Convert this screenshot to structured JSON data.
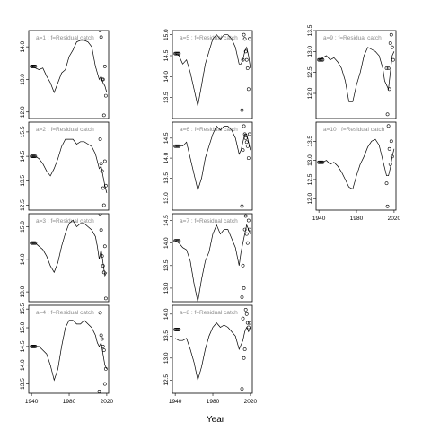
{
  "xlabel": "Year",
  "chart_data": [
    {
      "type": "line",
      "title": "a=1 : f=Residual catch",
      "xlim": [
        1937,
        2022
      ],
      "ylim": [
        11.8,
        14.5
      ],
      "xticks": [
        1940,
        1980,
        2020
      ],
      "yticks": [
        12.0,
        13.0,
        14.0
      ],
      "line": {
        "x": [
          1940,
          1944,
          1948,
          1952,
          1956,
          1960,
          1964,
          1968,
          1972,
          1976,
          1980,
          1984,
          1988,
          1992,
          1996,
          2000,
          2004,
          2008,
          2010,
          2012,
          2014,
          2016,
          2018,
          2020
        ],
        "y": [
          13.4,
          13.35,
          13.3,
          13.35,
          13.1,
          12.9,
          12.6,
          12.9,
          13.2,
          13.3,
          13.7,
          13.9,
          14.15,
          14.2,
          14.2,
          14.15,
          14.0,
          13.4,
          13.2,
          13.0,
          13.1,
          12.9,
          12.8,
          12.6
        ]
      },
      "markers": {
        "x": [
          1940,
          1941,
          1942,
          1943,
          1944
        ],
        "y": [
          13.4,
          13.4,
          13.4,
          13.4,
          13.4
        ]
      },
      "points": {
        "x": [
          2013,
          2014,
          2015,
          2016,
          2017,
          2018,
          2019
        ],
        "y": [
          14.5,
          14.3,
          13.0,
          13.0,
          11.9,
          13.4,
          12.5
        ]
      }
    },
    {
      "type": "line",
      "title": "a=2 : f=Residual catch",
      "xlim": [
        1937,
        2022
      ],
      "ylim": [
        12.3,
        15.9
      ],
      "xticks": [
        1940,
        1980,
        2020
      ],
      "yticks": [
        12.5,
        13.5,
        14.5,
        15.5
      ],
      "line": {
        "x": [
          1940,
          1944,
          1948,
          1952,
          1956,
          1960,
          1964,
          1968,
          1972,
          1976,
          1980,
          1984,
          1988,
          1992,
          1996,
          2000,
          2004,
          2008,
          2010,
          2012,
          2014,
          2016,
          2018,
          2020
        ],
        "y": [
          14.5,
          14.5,
          14.4,
          14.2,
          13.9,
          13.7,
          14.0,
          14.4,
          14.9,
          15.2,
          15.2,
          15.2,
          15.0,
          15.1,
          15.1,
          15.0,
          14.9,
          14.6,
          14.3,
          14.0,
          14.1,
          13.7,
          13.3,
          13.0
        ]
      },
      "markers": {
        "x": [
          1940,
          1941,
          1942,
          1943,
          1944
        ],
        "y": [
          14.5,
          14.5,
          14.5,
          14.5,
          14.5
        ]
      },
      "points": {
        "x": [
          2013,
          2014,
          2015,
          2016,
          2017,
          2018,
          2019
        ],
        "y": [
          15.2,
          14.2,
          13.9,
          13.2,
          12.5,
          14.3,
          13.3
        ]
      }
    },
    {
      "type": "line",
      "title": "a=3 : f=Residual catch",
      "xlim": [
        1937,
        2022
      ],
      "ylim": [
        12.7,
        15.4
      ],
      "xticks": [
        1940,
        1980,
        2020
      ],
      "yticks": [
        13.0,
        14.0,
        15.0
      ],
      "line": {
        "x": [
          1940,
          1944,
          1948,
          1952,
          1956,
          1960,
          1964,
          1968,
          1972,
          1976,
          1980,
          1984,
          1988,
          1992,
          1996,
          2000,
          2004,
          2008,
          2010,
          2012,
          2014,
          2016,
          2018,
          2020
        ],
        "y": [
          14.5,
          14.5,
          14.4,
          14.3,
          14.1,
          13.8,
          13.6,
          13.9,
          14.4,
          14.8,
          15.1,
          15.2,
          15.0,
          15.1,
          15.1,
          15.0,
          14.9,
          14.7,
          14.4,
          14.0,
          14.3,
          13.9,
          13.5,
          13.6
        ]
      },
      "markers": {
        "x": [
          1940,
          1941,
          1942,
          1943,
          1944
        ],
        "y": [
          14.5,
          14.5,
          14.5,
          14.5,
          14.5
        ]
      },
      "points": {
        "x": [
          2013,
          2014,
          2015,
          2016,
          2017,
          2018,
          2019
        ],
        "y": [
          15.4,
          14.9,
          14.1,
          13.8,
          13.6,
          14.4,
          12.8
        ]
      }
    },
    {
      "type": "line",
      "title": "a=4 : f=Residual catch",
      "xlim": [
        1937,
        2022
      ],
      "ylim": [
        13.25,
        15.6
      ],
      "xticks": [
        1940,
        1980,
        2020
      ],
      "yticks": [
        13.5,
        14.0,
        14.5,
        15.0,
        15.5
      ],
      "line": {
        "x": [
          1940,
          1944,
          1948,
          1952,
          1956,
          1960,
          1964,
          1968,
          1972,
          1976,
          1980,
          1984,
          1988,
          1992,
          1996,
          2000,
          2004,
          2008,
          2010,
          2012,
          2014,
          2016,
          2018,
          2020
        ],
        "y": [
          14.5,
          14.5,
          14.5,
          14.4,
          14.3,
          14.0,
          13.6,
          13.9,
          14.5,
          15.0,
          15.2,
          15.2,
          15.1,
          15.1,
          15.2,
          15.1,
          15.0,
          14.8,
          14.6,
          14.5,
          14.6,
          14.3,
          14.0,
          13.9
        ]
      },
      "markers": {
        "x": [
          1940,
          1941,
          1942,
          1943,
          1944
        ],
        "y": [
          14.5,
          14.5,
          14.5,
          14.5,
          14.5
        ]
      },
      "points": {
        "x": [
          2012,
          2013,
          2014,
          2015,
          2016,
          2017,
          2018,
          2019
        ],
        "y": [
          13.3,
          15.4,
          14.8,
          14.7,
          14.5,
          14.4,
          13.5,
          13.9
        ]
      }
    },
    {
      "type": "line",
      "title": "a=5 : f=Residual catch",
      "xlim": [
        1937,
        2022
      ],
      "ylim": [
        13.0,
        15.1
      ],
      "xticks": [
        1940,
        1980,
        2020
      ],
      "yticks": [
        13.5,
        14.0,
        14.5,
        15.0
      ],
      "line": {
        "x": [
          1940,
          1944,
          1948,
          1952,
          1956,
          1960,
          1964,
          1968,
          1972,
          1976,
          1980,
          1984,
          1988,
          1992,
          1996,
          2000,
          2004,
          2008,
          2010,
          2012,
          2014,
          2016,
          2018,
          2020
        ],
        "y": [
          14.55,
          14.5,
          14.3,
          14.4,
          14.1,
          13.7,
          13.3,
          13.8,
          14.3,
          14.6,
          14.9,
          15.0,
          14.9,
          15.0,
          15.0,
          14.9,
          14.7,
          14.3,
          14.3,
          14.4,
          14.6,
          14.7,
          14.5,
          14.2
        ]
      },
      "markers": {
        "x": [
          1940,
          1941,
          1942,
          1943,
          1944
        ],
        "y": [
          14.55,
          14.55,
          14.55,
          14.55,
          14.55
        ]
      },
      "points": {
        "x": [
          2011,
          2012,
          2013,
          2014,
          2015,
          2016,
          2017,
          2018,
          2019
        ],
        "y": [
          13.2,
          14.4,
          15.0,
          14.9,
          14.6,
          14.4,
          14.2,
          13.7,
          14.9
        ]
      }
    },
    {
      "type": "line",
      "title": "a=6 : f=Residual catch",
      "xlim": [
        1937,
        2022
      ],
      "ylim": [
        12.7,
        14.9
      ],
      "xticks": [
        1940,
        1980,
        2020
      ],
      "yticks": [
        13.0,
        13.5,
        14.0,
        14.5
      ],
      "line": {
        "x": [
          1940,
          1944,
          1948,
          1952,
          1956,
          1960,
          1964,
          1968,
          1972,
          1976,
          1980,
          1984,
          1988,
          1992,
          1996,
          2000,
          2004,
          2008,
          2010,
          2012,
          2014,
          2016,
          2018,
          2020
        ],
        "y": [
          14.3,
          14.3,
          14.3,
          14.4,
          14.0,
          13.6,
          13.2,
          13.5,
          14.0,
          14.3,
          14.6,
          14.8,
          14.7,
          14.8,
          14.8,
          14.7,
          14.5,
          14.1,
          14.2,
          14.4,
          14.6,
          14.6,
          14.4,
          14.2
        ]
      },
      "markers": {
        "x": [
          1940,
          1941,
          1942,
          1943,
          1944
        ],
        "y": [
          14.3,
          14.3,
          14.3,
          14.3,
          14.3
        ]
      },
      "points": {
        "x": [
          2011,
          2012,
          2013,
          2014,
          2015,
          2016,
          2017,
          2018,
          2019
        ],
        "y": [
          12.8,
          14.2,
          14.8,
          14.6,
          14.5,
          14.4,
          14.3,
          14.0,
          14.6
        ]
      }
    },
    {
      "type": "line",
      "title": "a=7 : f=Residual catch",
      "xlim": [
        1937,
        2022
      ],
      "ylim": [
        12.7,
        14.65
      ],
      "xticks": [
        1940,
        1980,
        2020
      ],
      "yticks": [
        13.0,
        13.5,
        14.0,
        14.5
      ],
      "line": {
        "x": [
          1940,
          1944,
          1948,
          1952,
          1956,
          1960,
          1964,
          1968,
          1972,
          1976,
          1980,
          1984,
          1988,
          1992,
          1996,
          2000,
          2004,
          2008,
          2010,
          2012,
          2014,
          2016,
          2018,
          2020
        ],
        "y": [
          14.05,
          14.0,
          13.9,
          13.85,
          13.6,
          13.1,
          12.7,
          13.2,
          13.6,
          13.8,
          14.2,
          14.4,
          14.2,
          14.3,
          14.3,
          14.1,
          13.9,
          13.5,
          13.8,
          14.0,
          14.2,
          14.4,
          14.3,
          14.2
        ]
      },
      "markers": {
        "x": [
          1940,
          1941,
          1942,
          1943,
          1944
        ],
        "y": [
          14.05,
          14.05,
          14.05,
          14.05,
          14.05
        ]
      },
      "points": {
        "x": [
          2011,
          2012,
          2013,
          2014,
          2015,
          2016,
          2017,
          2018,
          2019
        ],
        "y": [
          12.8,
          13.5,
          13.0,
          14.3,
          14.6,
          14.2,
          14.0,
          14.5,
          14.3
        ]
      }
    },
    {
      "type": "line",
      "title": "a=8 : f=Residual catch",
      "xlim": [
        1937,
        2022
      ],
      "ylim": [
        12.2,
        14.2
      ],
      "xticks": [
        1940,
        1980,
        2020
      ],
      "yticks": [
        12.5,
        13.0,
        13.5,
        14.0
      ],
      "line": {
        "x": [
          1940,
          1944,
          1948,
          1952,
          1956,
          1960,
          1964,
          1968,
          1972,
          1976,
          1980,
          1984,
          1988,
          1992,
          1996,
          2000,
          2004,
          2008,
          2010,
          2012,
          2014,
          2016,
          2018,
          2020
        ],
        "y": [
          13.45,
          13.4,
          13.4,
          13.45,
          13.2,
          12.9,
          12.5,
          12.8,
          13.2,
          13.5,
          13.7,
          13.8,
          13.7,
          13.75,
          13.7,
          13.6,
          13.5,
          13.2,
          13.3,
          13.4,
          13.6,
          13.7,
          13.6,
          13.7
        ]
      },
      "markers": {
        "x": [
          1940,
          1941,
          1942,
          1943,
          1944
        ],
        "y": [
          13.65,
          13.65,
          13.65,
          13.65,
          13.65
        ]
      },
      "points": {
        "x": [
          2011,
          2012,
          2013,
          2014,
          2015,
          2016,
          2017,
          2018,
          2019
        ],
        "y": [
          12.3,
          13.9,
          13.0,
          13.2,
          14.1,
          14.0,
          13.8,
          13.7,
          13.8
        ]
      }
    },
    {
      "type": "line",
      "title": "a=9 : f=Residual catch",
      "xlim": [
        1937,
        2022
      ],
      "ylim": [
        11.4,
        13.5
      ],
      "xticks": [
        1940,
        1980,
        2020
      ],
      "yticks": [
        12.0,
        12.5,
        13.0,
        13.5
      ],
      "line": {
        "x": [
          1940,
          1944,
          1948,
          1952,
          1956,
          1960,
          1964,
          1968,
          1972,
          1976,
          1980,
          1984,
          1988,
          1992,
          1996,
          2000,
          2004,
          2008,
          2010,
          2012,
          2014,
          2016,
          2018,
          2020
        ],
        "y": [
          12.8,
          12.85,
          12.9,
          12.8,
          12.85,
          12.75,
          12.6,
          12.3,
          11.8,
          11.8,
          12.2,
          12.5,
          12.9,
          13.1,
          13.05,
          13.0,
          12.9,
          12.6,
          12.3,
          12.2,
          12.1,
          12.5,
          12.9,
          13.0
        ]
      },
      "markers": {
        "x": [
          1940,
          1941,
          1942,
          1943,
          1944
        ],
        "y": [
          12.8,
          12.8,
          12.8,
          12.8,
          12.8
        ]
      },
      "points": {
        "x": [
          2012,
          2013,
          2014,
          2015,
          2016,
          2017,
          2018,
          2019
        ],
        "y": [
          12.6,
          11.5,
          12.6,
          12.1,
          13.2,
          13.4,
          13.1,
          12.8
        ]
      }
    },
    {
      "type": "line",
      "title": "a=10 : f=Residual catch",
      "xlim": [
        1937,
        2022
      ],
      "ylim": [
        11.7,
        14.0
      ],
      "xticks": [
        1940,
        1980,
        2020
      ],
      "yticks": [
        12.0,
        12.5,
        13.0,
        13.5
      ],
      "line": {
        "x": [
          1940,
          1944,
          1948,
          1952,
          1956,
          1960,
          1964,
          1968,
          1972,
          1976,
          1980,
          1984,
          1988,
          1992,
          1996,
          2000,
          2004,
          2008,
          2010,
          2012,
          2014,
          2016,
          2018,
          2020
        ],
        "y": [
          12.95,
          12.95,
          13.0,
          12.9,
          12.95,
          12.85,
          12.7,
          12.5,
          12.3,
          12.25,
          12.6,
          12.9,
          13.1,
          13.35,
          13.5,
          13.55,
          13.4,
          13.0,
          12.8,
          12.6,
          12.6,
          12.8,
          13.1,
          13.3
        ]
      },
      "markers": {
        "x": [
          1940,
          1941,
          1942,
          1943,
          1944
        ],
        "y": [
          12.95,
          12.95,
          12.95,
          12.95,
          12.95
        ]
      },
      "points": {
        "x": [
          2012,
          2013,
          2014,
          2015,
          2016,
          2017,
          2018
        ],
        "y": [
          12.4,
          11.8,
          13.9,
          13.3,
          12.9,
          13.5,
          13.1
        ]
      }
    }
  ]
}
